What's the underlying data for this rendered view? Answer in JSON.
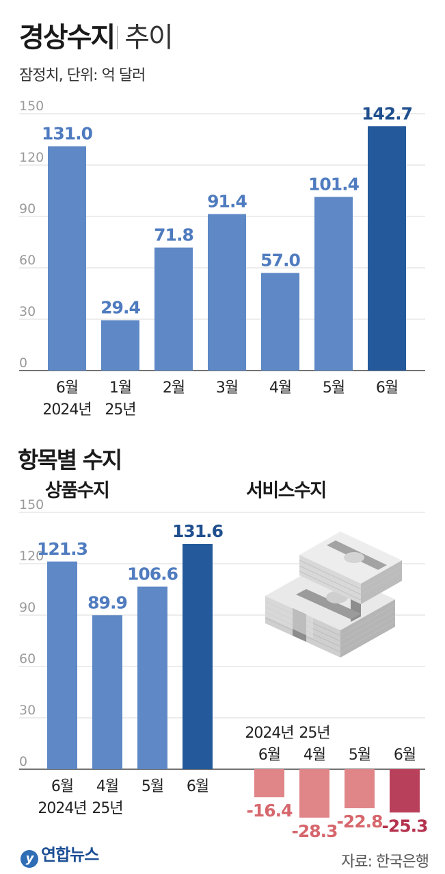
{
  "title": {
    "main": "경상수지",
    "sub": "추이"
  },
  "subtitle": "잠정치, 단위: 억 달러",
  "section_title": "항목별 수지",
  "source": "자료: 한국은행",
  "logo_text": "연합뉴스",
  "logo_mark": "y",
  "colors": {
    "bar": "#5e88c6",
    "bar_highlight": "#245a9b",
    "neg_bar": "#e08588",
    "neg_bar_highlight": "#b9405a",
    "pos_label": "#4f7bbf",
    "pos_label_highlight": "#1f4f8e",
    "neg_label": "#d6676d",
    "neg_label_highlight": "#b4334e",
    "grid": "#d9d9d9",
    "axis_tick": "#9a9a9a"
  },
  "chart_data": [
    {
      "type": "bar",
      "title": "경상수지 추이",
      "categories": [
        [
          "6월",
          "2024년"
        ],
        [
          "1월",
          "25년"
        ],
        [
          "2월"
        ],
        [
          "3월"
        ],
        [
          "4월"
        ],
        [
          "5월"
        ],
        [
          "6월"
        ]
      ],
      "values": [
        131.0,
        29.4,
        71.8,
        91.4,
        57.0,
        101.4,
        142.7
      ],
      "value_labels": [
        "131.0",
        "29.4",
        "71.8",
        "91.4",
        "57.0",
        "101.4",
        "142.7"
      ],
      "highlight": [
        false,
        false,
        false,
        false,
        false,
        false,
        true
      ],
      "yticks": [
        "150",
        "120",
        "90",
        "60",
        "30",
        "0"
      ],
      "ylim": [
        0,
        150
      ],
      "grid": true
    },
    {
      "type": "bar",
      "title": "상품수지",
      "categories": [
        [
          "6월",
          "2024년"
        ],
        [
          "4월",
          "25년"
        ],
        [
          "5월"
        ],
        [
          "6월"
        ]
      ],
      "values": [
        121.3,
        89.9,
        106.6,
        131.6
      ],
      "value_labels": [
        "121.3",
        "89.9",
        "106.6",
        "131.6"
      ],
      "highlight": [
        false,
        false,
        false,
        true
      ],
      "yticks": [
        "150",
        "120",
        "90",
        "60",
        "30",
        "0"
      ],
      "ylim": [
        0,
        150
      ],
      "grid": true
    },
    {
      "type": "bar",
      "title": "서비스수지",
      "categories": [
        [
          "2024년",
          "6월"
        ],
        [
          "25년",
          "4월"
        ],
        [
          "5월"
        ],
        [
          "6월"
        ]
      ],
      "values": [
        -16.4,
        -28.3,
        -22.8,
        -25.3
      ],
      "value_labels": [
        "-16.4",
        "-28.3",
        "-22.8",
        "-25.3"
      ],
      "highlight": [
        false,
        false,
        false,
        true
      ],
      "ylim": [
        -150,
        150
      ]
    }
  ]
}
